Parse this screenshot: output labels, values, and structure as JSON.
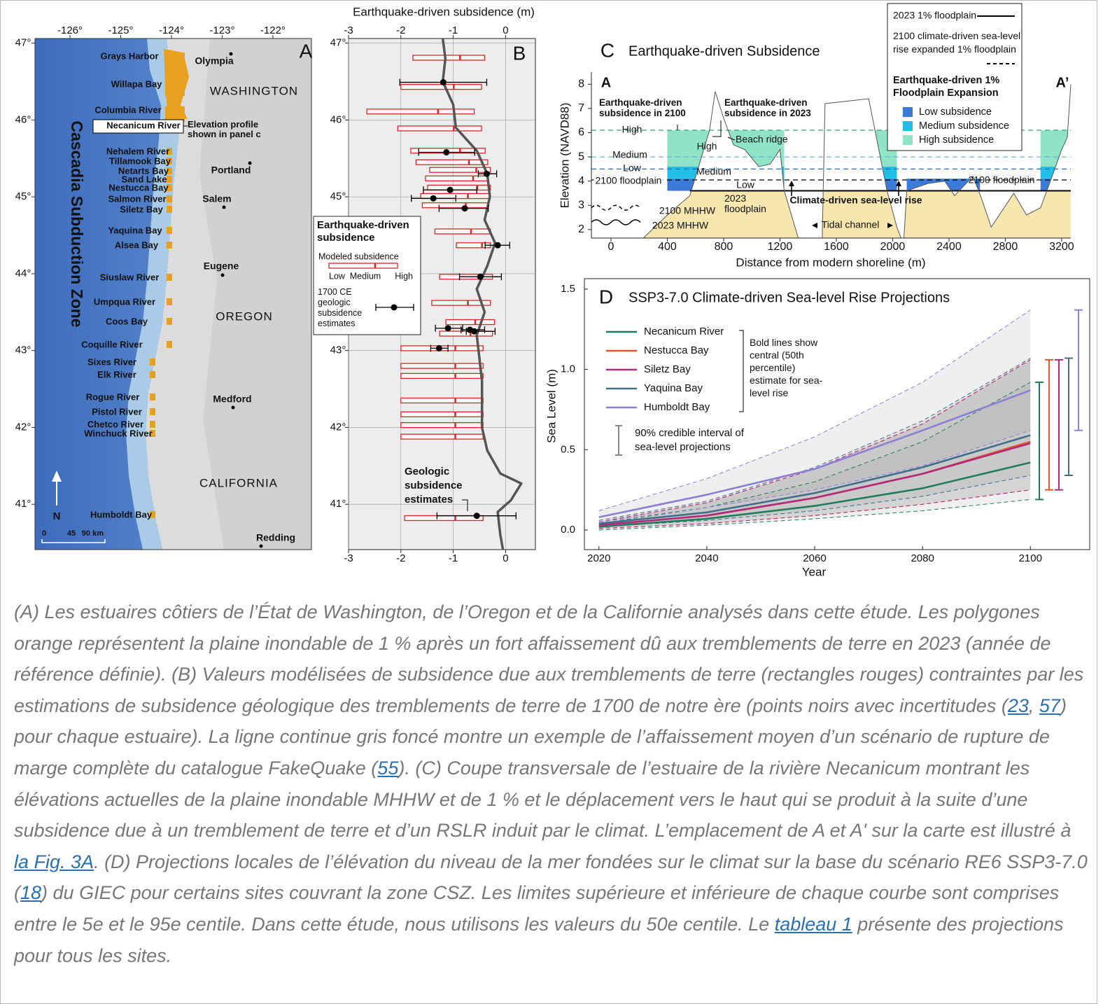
{
  "map": {
    "panel": "A",
    "lonlim": [
      -126.69,
      -121.24
    ],
    "latlim": [
      40.41,
      47.06
    ],
    "lon_ticks": [
      {
        "value": -126,
        "label": "-126°"
      },
      {
        "value": -125,
        "label": "-125°"
      },
      {
        "value": -124,
        "label": "-124°"
      },
      {
        "value": -123,
        "label": "-123°"
      },
      {
        "value": -122,
        "label": "-122°"
      }
    ],
    "lat_ticks": [
      {
        "value": 47,
        "label": "47°"
      },
      {
        "value": 46,
        "label": "46°"
      },
      {
        "value": 45,
        "label": "45°"
      },
      {
        "value": 44,
        "label": "44°"
      },
      {
        "value": 43,
        "label": "43°"
      },
      {
        "value": 42,
        "label": "42°"
      },
      {
        "value": 41,
        "label": "41°"
      }
    ],
    "places": [
      "Grays Harbor",
      "Willapa Bay",
      "Columbia River",
      "Necanicum River",
      "Nehalem River",
      "Tillamook Bay",
      "Netarts Bay",
      "Sand Lake",
      "Nestucca Bay",
      "Salmon River",
      "Siletz Bay",
      "Yaquina Bay",
      "Alsea Bay",
      "Siuslaw River",
      "Umpqua River",
      "Coos Bay",
      "Coquille River",
      "Sixes River",
      "Elk River",
      "Rogue River",
      "Pistol River",
      "Chetco River",
      "Winchuck River",
      "Humboldt Bay"
    ],
    "cities": [
      "Olympia",
      "Portland",
      "Salem",
      "Eugene",
      "Medford",
      "Redding"
    ],
    "states": [
      "WASHINGTON",
      "OREGON",
      "CALIFORNIA"
    ],
    "zone": "Cascadia Subduction Zone",
    "profile_note": "Elevation profile shown in panel c",
    "north": "N",
    "scale": [
      "0",
      "45",
      "90 km"
    ]
  },
  "chart_data": [
    {
      "type": "range",
      "panel": "B",
      "xlabel": "Earthquake-driven subsidence (m)",
      "xlim": [
        -3,
        0.57
      ],
      "ylim": [
        40.41,
        47.06
      ],
      "xticks": [
        -3,
        -2,
        -1,
        0
      ],
      "yticks": [
        {
          "value": 47,
          "label": "47°"
        },
        {
          "value": 46,
          "label": "46°"
        },
        {
          "value": 45,
          "label": "45°"
        },
        {
          "value": 44,
          "label": "44°"
        },
        {
          "value": 43,
          "label": "43°"
        },
        {
          "value": 42,
          "label": "42°"
        },
        {
          "value": 41,
          "label": "41°"
        }
      ],
      "grid": true,
      "modeled": {
        "name": "Modeled subsidence",
        "color": "#d42a2a",
        "lat": [
          46.81,
          46.43,
          46.11,
          45.89,
          45.6,
          45.45,
          45.35,
          45.24,
          45.12,
          45.01,
          44.89,
          44.55,
          44.37,
          43.96,
          43.62,
          43.37,
          43.22,
          43.03,
          42.8,
          42.67,
          42.35,
          42.17,
          42.03,
          41.88,
          40.82
        ],
        "low": [
          -1.77,
          -2.0,
          -2.65,
          -2.06,
          -1.81,
          -1.71,
          -1.45,
          -1.53,
          -1.49,
          -1.62,
          -1.59,
          -1.35,
          -0.94,
          -1.26,
          -1.41,
          -1.14,
          -1.26,
          -2.0,
          -2.0,
          -2.0,
          -2.0,
          -2.0,
          -2.0,
          -2.0,
          -1.93
        ],
        "medium": [
          -0.87,
          -0.99,
          -1.29,
          -0.99,
          -0.87,
          -0.7,
          -0.56,
          -0.62,
          -0.54,
          -0.72,
          -0.76,
          -0.66,
          -0.45,
          -0.52,
          -0.72,
          -0.58,
          -0.67,
          -0.96,
          -0.96,
          -0.96,
          -0.96,
          -0.96,
          -0.96,
          -0.96,
          -0.96
        ],
        "high": [
          -0.4,
          -0.46,
          -0.6,
          -0.46,
          -0.39,
          -0.34,
          -0.29,
          -0.33,
          -0.29,
          -0.29,
          -0.33,
          -0.29,
          -0.29,
          -0.25,
          -0.29,
          -0.21,
          -0.25,
          -0.43,
          -0.43,
          -0.43,
          -0.43,
          -0.43,
          -0.43,
          -0.43,
          -0.43
        ]
      },
      "geologic": {
        "name": "1700 CE geologic subsidence estimates",
        "color": "#000000",
        "lat": [
          46.49,
          45.58,
          45.3,
          45.09,
          44.98,
          44.85,
          44.37,
          43.96,
          43.29,
          43.27,
          43.25,
          43.03,
          40.85
        ],
        "values": [
          -1.19,
          -1.13,
          -0.36,
          -1.06,
          -1.38,
          -0.78,
          -0.15,
          -0.48,
          -1.1,
          -0.68,
          -0.6,
          -1.27,
          -0.55
        ],
        "low": [
          -2.02,
          -1.66,
          -0.52,
          -1.57,
          -1.8,
          -1.27,
          -0.39,
          -0.88,
          -1.34,
          -0.85,
          -0.75,
          -1.43,
          -1.31
        ],
        "high": [
          -0.36,
          -0.59,
          -0.17,
          -0.55,
          -0.95,
          -0.33,
          0.08,
          -0.08,
          -0.82,
          -0.4,
          -0.2,
          -1.1,
          0.2
        ]
      },
      "profile": {
        "color": "#555555",
        "lat": [
          47.06,
          46.8,
          46.5,
          46.2,
          45.9,
          45.6,
          45.3,
          45.0,
          44.7,
          44.4,
          44.1,
          43.8,
          43.5,
          43.2,
          42.9,
          42.6,
          42.3,
          42.0,
          41.7,
          41.4,
          41.27,
          41.05,
          40.9,
          40.6,
          40.41
        ],
        "values": [
          -1.2,
          -1.15,
          -1.2,
          -1.0,
          -0.95,
          -0.55,
          -0.35,
          -0.3,
          -0.4,
          -0.2,
          -0.35,
          -0.55,
          -0.4,
          -0.55,
          -0.5,
          -0.45,
          -0.45,
          -0.45,
          -0.35,
          -0.1,
          0.3,
          0.1,
          -0.15,
          -0.1,
          -0.05
        ]
      },
      "legend_title": "Earthquake-driven subsidence",
      "legend_labels": [
        "Low",
        "Medium",
        "High"
      ],
      "annotation": "Geologic subsidence estimates"
    },
    {
      "type": "area",
      "panel": "C",
      "title": "Earthquake-driven Subsidence",
      "xlabel": "Distance from modern shoreline (m)",
      "ylabel": "Elevation (NAVD88)",
      "xlim": [
        -139,
        3265
      ],
      "ylim": [
        1.65,
        8.5
      ],
      "xticks": [
        0,
        400,
        800,
        1200,
        1600,
        2000,
        2400,
        2800,
        3200
      ],
      "yticks": [
        2,
        3,
        4,
        5,
        6,
        7,
        8
      ],
      "terrain": {
        "color": "#555555",
        "x": [
          230,
          400,
          560,
          700,
          740,
          800,
          870,
          950,
          1050,
          1130,
          1200,
          1230,
          1330,
          1500,
          1520,
          1830,
          1960,
          2030,
          2060,
          2080,
          2100,
          2250,
          2370,
          2440,
          2570,
          2630,
          2700,
          2860,
          2950,
          3050,
          3120,
          3200,
          3240,
          3265
        ],
        "values": [
          1.65,
          2.6,
          3.4,
          6.1,
          7.7,
          6.6,
          5.5,
          5.3,
          4.6,
          4.7,
          5.3,
          3.6,
          1.65,
          1.65,
          7.2,
          7.4,
          3.6,
          2.1,
          1.65,
          1.65,
          3.6,
          3.9,
          4.0,
          3.4,
          4.2,
          3.3,
          2.1,
          3.5,
          2.6,
          2.9,
          4.0,
          5.3,
          5.8,
          8.0
        ]
      },
      "land_color": "#f7e6ae",
      "levels": [
        {
          "name": "High",
          "value": 6.1,
          "color": "#2aa58a",
          "dash": true
        },
        {
          "name": "Medium",
          "value": 5.0,
          "color": "#6ab3e0",
          "dash": true
        },
        {
          "name": "Low",
          "value": 4.5,
          "color": "#2b6cc4",
          "dash": true
        },
        {
          "name": "2100 floodplain",
          "value": 4.05,
          "color": "#000000",
          "dash": true
        },
        {
          "name": "2023 floodplain",
          "value": 3.6,
          "color": "#000000",
          "dash": false
        },
        {
          "name": "2100 MHHW",
          "value": 2.9,
          "color": "#000000",
          "dash": true,
          "wave": true
        },
        {
          "name": "2023 MHHW",
          "value": 2.3,
          "color": "#000000",
          "dash": false,
          "wave": true
        }
      ],
      "series": [
        {
          "name": "Low subsidence",
          "color": "#3b7bd8",
          "range": [
            3.6,
            4.1
          ],
          "extents": [
            [
              400,
              1230
            ],
            [
              1520,
              2030
            ],
            [
              2100,
              2620
            ],
            [
              3050,
              3265
            ]
          ]
        },
        {
          "name": "Medium subsidence",
          "color": "#21bfe8",
          "range": [
            4.1,
            4.6
          ],
          "extents": [
            [
              400,
              1230
            ],
            [
              1520,
              2030
            ],
            [
              3050,
              3265
            ]
          ]
        },
        {
          "name": "High subsidence",
          "color": "#8fe3c6",
          "range": [
            4.6,
            6.1
          ],
          "extents": [
            [
              400,
              1230
            ],
            [
              1520,
              2030
            ],
            [
              3050,
              3265
            ]
          ]
        }
      ],
      "legend": {
        "line1": "2023 1% floodplain",
        "line2": "2100 climate-driven sea-level rise expanded 1% floodplain",
        "title": "Earthquake-driven 1% Floodplain Expansion"
      },
      "annotations": [
        "A",
        "A’",
        "Earthquake-driven subsidence in 2100",
        "Earthquake-driven subsidence in 2023",
        "High",
        "Beach ridge",
        "Medium",
        "Low",
        "Climate-driven sea-level rise",
        "Tidal channel",
        "2100 floodplain"
      ]
    },
    {
      "type": "line",
      "panel": "D",
      "title": "SSP3-7.0 Climate-driven Sea-level Rise Projections",
      "xlabel": "Year",
      "ylabel": "Sea Level (m)",
      "x": [
        2020,
        2040,
        2060,
        2080,
        2100
      ],
      "xlim": [
        2017.3,
        2111
      ],
      "ylim": [
        -0.122,
        1.565
      ],
      "xticks": [
        2020,
        2040,
        2060,
        2080,
        2100
      ],
      "yticks": [
        {
          "value": 0,
          "label": "0.0"
        },
        {
          "value": 0.5,
          "label": "0.5"
        },
        {
          "value": 1,
          "label": "1.0"
        },
        {
          "value": 1.5,
          "label": "1.5"
        }
      ],
      "band_color": "#808080",
      "series": [
        {
          "name": "Necanicum River",
          "color": "#1f7d5c",
          "values": [
            0.02,
            0.07,
            0.15,
            0.26,
            0.42
          ],
          "low": [
            0.0,
            0.03,
            0.07,
            0.12,
            0.19
          ],
          "high": [
            0.04,
            0.14,
            0.3,
            0.55,
            0.92
          ]
        },
        {
          "name": "Nestucca Bay",
          "color": "#e2572b",
          "values": [
            0.03,
            0.09,
            0.2,
            0.35,
            0.55
          ],
          "low": [
            0.01,
            0.04,
            0.09,
            0.16,
            0.25
          ],
          "high": [
            0.05,
            0.17,
            0.38,
            0.66,
            1.06
          ]
        },
        {
          "name": "Siletz Bay",
          "color": "#b02a7e",
          "values": [
            0.03,
            0.09,
            0.2,
            0.35,
            0.54
          ],
          "low": [
            0.01,
            0.04,
            0.09,
            0.16,
            0.25
          ],
          "high": [
            0.05,
            0.17,
            0.38,
            0.66,
            1.06
          ]
        },
        {
          "name": "Yaquina Bay",
          "color": "#3f6f8a",
          "values": [
            0.04,
            0.11,
            0.23,
            0.39,
            0.59
          ],
          "low": [
            0.02,
            0.06,
            0.12,
            0.21,
            0.34
          ],
          "high": [
            0.06,
            0.18,
            0.39,
            0.68,
            1.07
          ]
        },
        {
          "name": "Humboldt Bay",
          "color": "#8b7fd6",
          "values": [
            0.08,
            0.22,
            0.38,
            0.62,
            0.87
          ],
          "low": [
            0.05,
            0.14,
            0.25,
            0.4,
            0.62
          ],
          "high": [
            0.12,
            0.32,
            0.58,
            0.92,
            1.37
          ]
        }
      ],
      "note": "Bold lines show central (50th percentile) estimate for sea-level rise",
      "interval_label": "90% credible interval of sea-level projections"
    }
  ],
  "caption": {
    "parts": [
      "(A) Les estuaires côtiers de l’État de Washington, de l’Oregon et de la Californie analysés dans cette étude. Les polygones orange représentent la plaine inondable de 1 % après un fort affaissement dû aux tremblements de terre en 2023 (année de référence définie). (B) Valeurs modélisées de subsidence due aux tremblements de terre (rectangles rouges) contraintes par les estimations de subsidence géologique des tremblements de terre de 1700 de notre ère (points noirs avec incertitudes (",
      "23",
      ", ",
      "57",
      ") pour chaque estuaire). La ligne continue gris foncé montre un exemple de l’affaissement moyen d’un scénario de rupture de marge complète du catalogue FakeQuake (",
      "55",
      "). (C) Coupe transversale de l’estuaire de la rivière Necanicum montrant les élévations actuelles de la plaine inondable MHHW et de 1 % et le déplacement vers le haut qui se produit à la suite d’une subsidence due à un tremblement de terre et d’un RSLR induit par le climat. L’emplacement de A et A' sur la carte est illustré à ",
      "la Fig. 3A",
      ". (D) Projections locales de l’élévation du niveau de la mer fondées sur le climat sur la base du scénario RE6 SSP3-7.0 (",
      "18",
      ") du GIEC pour certains sites couvrant la zone CSZ. Les limites supérieure et inférieure de chaque courbe sont comprises entre le 5e et le 95e centile. Dans cette étude, nous utilisons les valeurs du 50e centile. Le ",
      "tableau 1",
      " présente des projections pour tous les sites."
    ]
  }
}
